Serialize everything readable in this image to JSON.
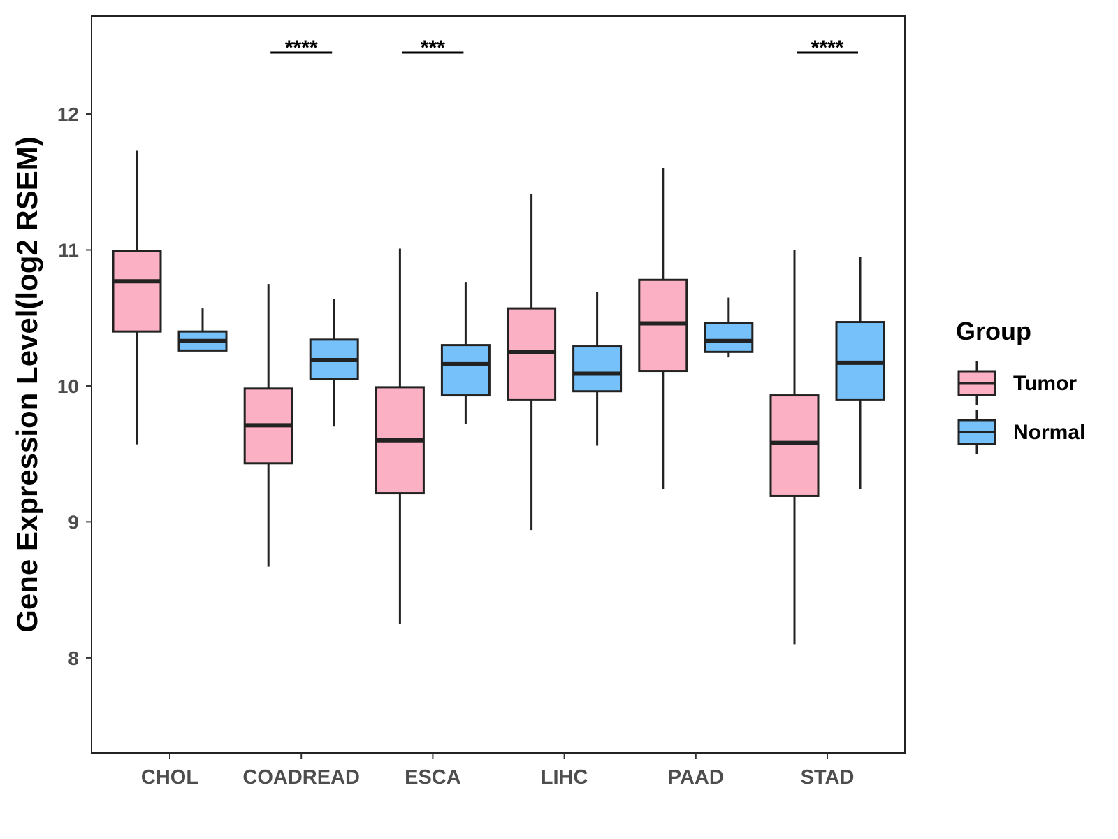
{
  "chart_data": {
    "type": "box",
    "title": "",
    "xlabel": "",
    "ylabel": "Gene Expression Level(log2 RSEM)",
    "ylim": [
      7.3,
      12.72
    ],
    "yticks": [
      "8",
      "9",
      "10",
      "11",
      "12"
    ],
    "categories": [
      "CHOL",
      "COADREAD",
      "ESCA",
      "LIHC",
      "PAAD",
      "STAD"
    ],
    "legend": {
      "title": "Group",
      "position": "right",
      "entries": [
        "Tumor",
        "Normal"
      ]
    },
    "colors": {
      "Tumor": "#fbb1c3",
      "Normal": "#77c1fa",
      "outline": "#222222"
    },
    "series": [
      {
        "name": "Tumor",
        "boxes": [
          {
            "category": "CHOL",
            "min": 9.57,
            "q1": 10.4,
            "median": 10.77,
            "q3": 10.99,
            "max": 11.73
          },
          {
            "category": "COADREAD",
            "min": 8.67,
            "q1": 9.43,
            "median": 9.71,
            "q3": 9.98,
            "max": 10.75
          },
          {
            "category": "ESCA",
            "min": 8.25,
            "q1": 9.21,
            "median": 9.6,
            "q3": 9.99,
            "max": 11.01
          },
          {
            "category": "LIHC",
            "min": 8.94,
            "q1": 9.9,
            "median": 10.25,
            "q3": 10.57,
            "max": 11.41
          },
          {
            "category": "PAAD",
            "min": 9.24,
            "q1": 10.11,
            "median": 10.46,
            "q3": 10.78,
            "max": 11.6
          },
          {
            "category": "STAD",
            "min": 8.1,
            "q1": 9.19,
            "median": 9.58,
            "q3": 9.93,
            "max": 11.0
          }
        ]
      },
      {
        "name": "Normal",
        "boxes": [
          {
            "category": "CHOL",
            "min": 10.26,
            "q1": 10.26,
            "median": 10.33,
            "q3": 10.4,
            "max": 10.57
          },
          {
            "category": "COADREAD",
            "min": 9.7,
            "q1": 10.05,
            "median": 10.19,
            "q3": 10.34,
            "max": 10.64
          },
          {
            "category": "ESCA",
            "min": 9.72,
            "q1": 9.93,
            "median": 10.16,
            "q3": 10.3,
            "max": 10.76
          },
          {
            "category": "LIHC",
            "min": 9.56,
            "q1": 9.96,
            "median": 10.09,
            "q3": 10.29,
            "max": 10.69
          },
          {
            "category": "PAAD",
            "min": 10.21,
            "q1": 10.25,
            "median": 10.33,
            "q3": 10.46,
            "max": 10.65
          },
          {
            "category": "STAD",
            "min": 9.24,
            "q1": 9.9,
            "median": 10.17,
            "q3": 10.47,
            "max": 10.95
          }
        ]
      }
    ],
    "significance": [
      {
        "category": "COADREAD",
        "label": "****"
      },
      {
        "category": "ESCA",
        "label": "***"
      },
      {
        "category": "STAD",
        "label": "****"
      }
    ]
  }
}
